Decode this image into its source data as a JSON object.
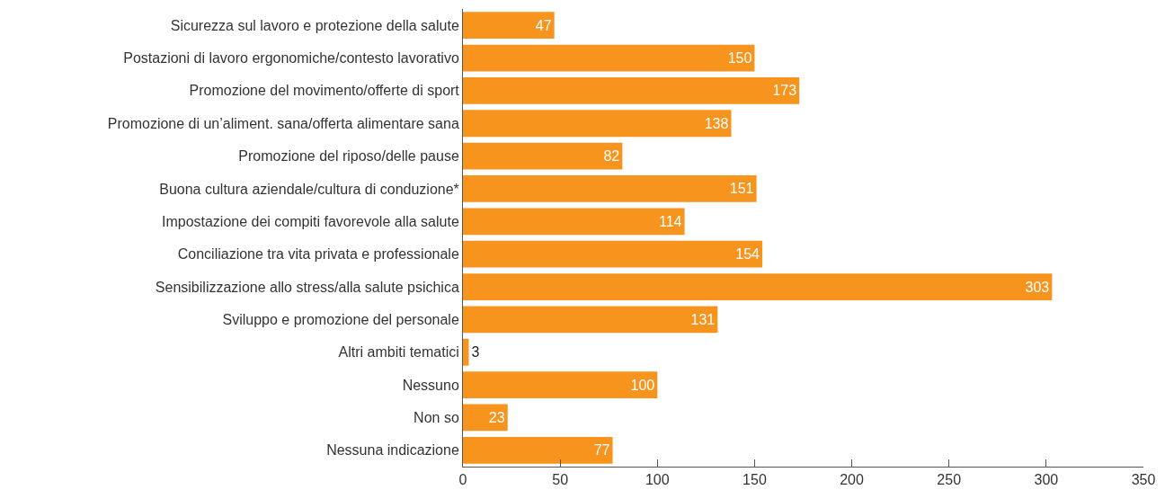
{
  "chart_data": {
    "type": "bar",
    "orientation": "horizontal",
    "categories": [
      "Sicurezza sul lavoro e protezione della salute",
      "Postazioni di lavoro ergonomiche/contesto lavorativo",
      "Promozione del movimento/offerte di sport",
      "Promozione di un’aliment. sana/offerta alimentare sana",
      "Promozione del riposo/delle pause",
      "Buona cultura aziendale/cultura di conduzione*",
      "Impostazione dei compiti favorevole alla salute",
      "Conciliazione tra vita privata e professionale",
      "Sensibilizzazione allo stress/alla salute psichica",
      "Sviluppo e promozione del personale",
      "Altri ambiti tematici",
      "Nessuno",
      "Non so",
      "Nessuna indicazione"
    ],
    "values": [
      47,
      150,
      173,
      138,
      82,
      151,
      114,
      154,
      303,
      131,
      3,
      100,
      23,
      77
    ],
    "color": "#f7941d",
    "data_labels": true,
    "xlim": [
      0,
      350
    ],
    "xticks": [
      0,
      50,
      100,
      150,
      200,
      250,
      300,
      350
    ],
    "grid": false
  }
}
